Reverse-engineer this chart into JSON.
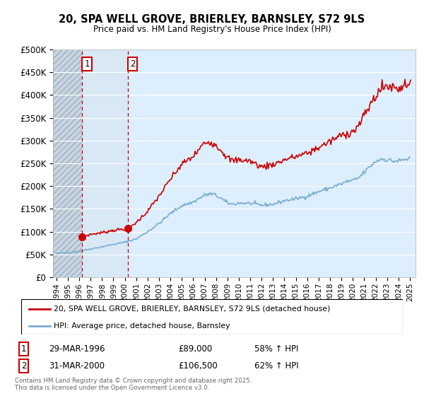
{
  "title": "20, SPA WELL GROVE, BRIERLEY, BARNSLEY, S72 9LS",
  "subtitle": "Price paid vs. HM Land Registry's House Price Index (HPI)",
  "ylim": [
    0,
    500000
  ],
  "yticks": [
    0,
    50000,
    100000,
    150000,
    200000,
    250000,
    300000,
    350000,
    400000,
    450000,
    500000
  ],
  "xlim_start": 1993.7,
  "xlim_end": 2025.5,
  "legend_line1": "20, SPA WELL GROVE, BRIERLEY, BARNSLEY, S72 9LS (detached house)",
  "legend_line2": "HPI: Average price, detached house, Barnsley",
  "purchase1_date": "29-MAR-1996",
  "purchase1_price": "£89,000",
  "purchase1_hpi": "58% ↑ HPI",
  "purchase1_year": 1996.24,
  "purchase1_value": 89000,
  "purchase2_date": "31-MAR-2000",
  "purchase2_price": "£106,500",
  "purchase2_hpi": "62% ↑ HPI",
  "purchase2_year": 2000.25,
  "purchase2_value": 106500,
  "footnote": "Contains HM Land Registry data © Crown copyright and database right 2025.\nThis data is licensed under the Open Government Licence v3.0.",
  "red_color": "#cc0000",
  "blue_color": "#7aadcf",
  "background_plot": "#ddeeff",
  "background_hatch": "#c8d8e8"
}
